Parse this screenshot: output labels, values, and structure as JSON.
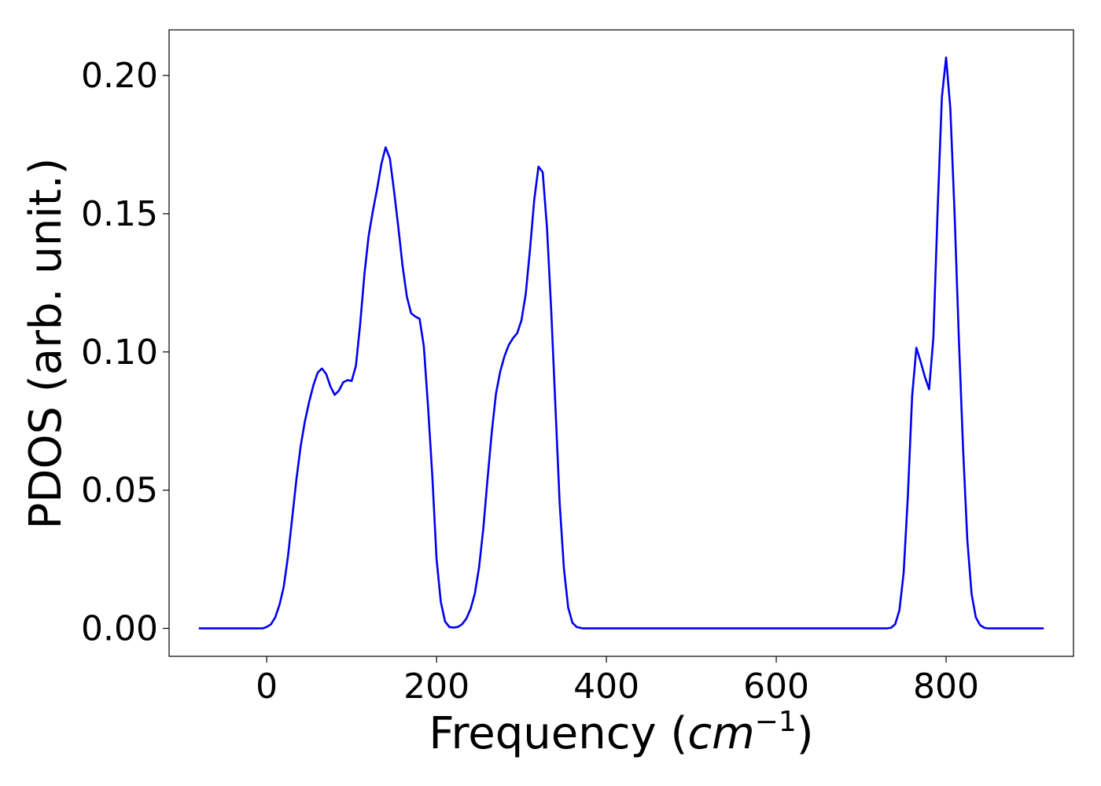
{
  "chart_data": {
    "type": "line",
    "title": "",
    "xlabel": "Frequency (",
    "xlabel_math": "cm",
    "xlabel_sup": "−1",
    "xlabel_close": ")",
    "ylabel": "PDOS (arb. unit.)",
    "xlim": [
      -115,
      950
    ],
    "ylim": [
      -0.0101,
      0.2165
    ],
    "x_ticks": [
      0,
      200,
      400,
      600,
      800
    ],
    "x_tick_labels": [
      "0",
      "200",
      "400",
      "600",
      "800"
    ],
    "y_ticks": [
      0.0,
      0.05,
      0.1,
      0.15,
      0.2
    ],
    "y_tick_labels": [
      "0.00",
      "0.05",
      "0.10",
      "0.15",
      "0.20"
    ],
    "grid": false,
    "legend": "none",
    "series": [
      {
        "color": "#0000ee",
        "points": [
          [
            -80,
            0.0
          ],
          [
            -20,
            0.0
          ],
          [
            -5,
            0.0
          ],
          [
            0,
            0.0005
          ],
          [
            5,
            0.0015
          ],
          [
            10,
            0.004
          ],
          [
            15,
            0.0085
          ],
          [
            20,
            0.015
          ],
          [
            25,
            0.026
          ],
          [
            30,
            0.04
          ],
          [
            35,
            0.054
          ],
          [
            40,
            0.066
          ],
          [
            45,
            0.075
          ],
          [
            50,
            0.082
          ],
          [
            55,
            0.088
          ],
          [
            60,
            0.0925
          ],
          [
            65,
            0.094
          ],
          [
            70,
            0.092
          ],
          [
            75,
            0.0875
          ],
          [
            80,
            0.0845
          ],
          [
            85,
            0.086
          ],
          [
            90,
            0.089
          ],
          [
            95,
            0.0898
          ],
          [
            100,
            0.0895
          ],
          [
            105,
            0.095
          ],
          [
            110,
            0.11
          ],
          [
            115,
            0.128
          ],
          [
            120,
            0.142
          ],
          [
            125,
            0.151
          ],
          [
            130,
            0.159
          ],
          [
            135,
            0.168
          ],
          [
            140,
            0.174
          ],
          [
            145,
            0.17
          ],
          [
            150,
            0.158
          ],
          [
            155,
            0.145
          ],
          [
            160,
            0.131
          ],
          [
            165,
            0.12
          ],
          [
            170,
            0.114
          ],
          [
            175,
            0.1128
          ],
          [
            180,
            0.112
          ],
          [
            185,
            0.102
          ],
          [
            190,
            0.08
          ],
          [
            195,
            0.055
          ],
          [
            200,
            0.025
          ],
          [
            205,
            0.0095
          ],
          [
            210,
            0.0025
          ],
          [
            215,
            0.0005
          ],
          [
            220,
            0.0003
          ],
          [
            225,
            0.0005
          ],
          [
            230,
            0.0015
          ],
          [
            235,
            0.0035
          ],
          [
            240,
            0.007
          ],
          [
            245,
            0.0125
          ],
          [
            250,
            0.022
          ],
          [
            255,
            0.036
          ],
          [
            260,
            0.054
          ],
          [
            265,
            0.071
          ],
          [
            270,
            0.085
          ],
          [
            275,
            0.093
          ],
          [
            280,
            0.0985
          ],
          [
            285,
            0.1025
          ],
          [
            290,
            0.105
          ],
          [
            295,
            0.1068
          ],
          [
            300,
            0.1115
          ],
          [
            305,
            0.121
          ],
          [
            310,
            0.137
          ],
          [
            315,
            0.155
          ],
          [
            320,
            0.167
          ],
          [
            325,
            0.165
          ],
          [
            330,
            0.145
          ],
          [
            335,
            0.115
          ],
          [
            340,
            0.08
          ],
          [
            345,
            0.045
          ],
          [
            350,
            0.0215
          ],
          [
            355,
            0.0075
          ],
          [
            360,
            0.002
          ],
          [
            365,
            0.0005
          ],
          [
            372,
            0.0
          ],
          [
            400,
            0.0
          ],
          [
            600,
            0.0
          ],
          [
            725,
            0.0
          ],
          [
            730,
            0.0
          ],
          [
            735,
            0.0002
          ],
          [
            740,
            0.0015
          ],
          [
            745,
            0.0065
          ],
          [
            750,
            0.02
          ],
          [
            755,
            0.048
          ],
          [
            760,
            0.084
          ],
          [
            765,
            0.1015
          ],
          [
            770,
            0.0965
          ],
          [
            775,
            0.091
          ],
          [
            780,
            0.0865
          ],
          [
            785,
            0.105
          ],
          [
            790,
            0.151
          ],
          [
            795,
            0.192
          ],
          [
            800,
            0.2065
          ],
          [
            805,
            0.188
          ],
          [
            810,
            0.15
          ],
          [
            815,
            0.105
          ],
          [
            820,
            0.065
          ],
          [
            825,
            0.032
          ],
          [
            830,
            0.0125
          ],
          [
            835,
            0.004
          ],
          [
            840,
            0.0012
          ],
          [
            845,
            0.0002
          ],
          [
            850,
            0.0
          ],
          [
            890,
            0.0
          ],
          [
            915,
            0.0
          ]
        ]
      }
    ]
  }
}
